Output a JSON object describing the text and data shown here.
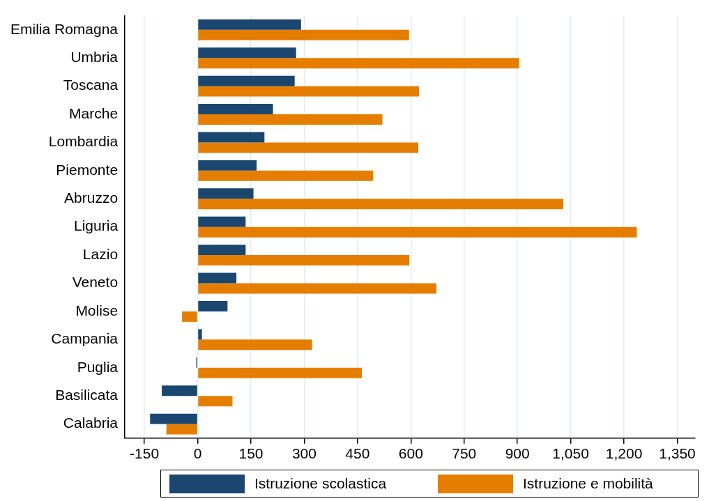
{
  "chart_data": {
    "type": "bar",
    "orientation": "horizontal",
    "categories": [
      "Emilia Romagna",
      "Umbria",
      "Toscana",
      "Marche",
      "Lombardia",
      "Piemonte",
      "Abruzzo",
      "Liguria",
      "Lazio",
      "Veneto",
      "Molise",
      "Campania",
      "Puglia",
      "Basilicata",
      "Calabria"
    ],
    "series": [
      {
        "name": "Istruzione scolastica",
        "color": "#1a4670",
        "values": [
          291,
          277,
          273,
          212,
          188,
          166,
          157,
          135,
          135,
          109,
          84,
          12,
          -4,
          -101,
          -134
        ]
      },
      {
        "name": "Istruzione e mobilità",
        "color": "#e57e00",
        "values": [
          595,
          905,
          623,
          520,
          621,
          494,
          1029,
          1236,
          596,
          672,
          -44,
          322,
          462,
          98,
          -88
        ]
      }
    ],
    "xlim": [
      -205,
      1400
    ],
    "xticks": [
      {
        "value": -150,
        "label": "-150"
      },
      0,
      150,
      300,
      450,
      600,
      750,
      900,
      {
        "value": 1050,
        "label": "1,050"
      },
      {
        "value": 1200,
        "label": "1,200"
      },
      {
        "value": 1350,
        "label": "1,350"
      }
    ],
    "grid": "x",
    "legend": "bottom"
  }
}
